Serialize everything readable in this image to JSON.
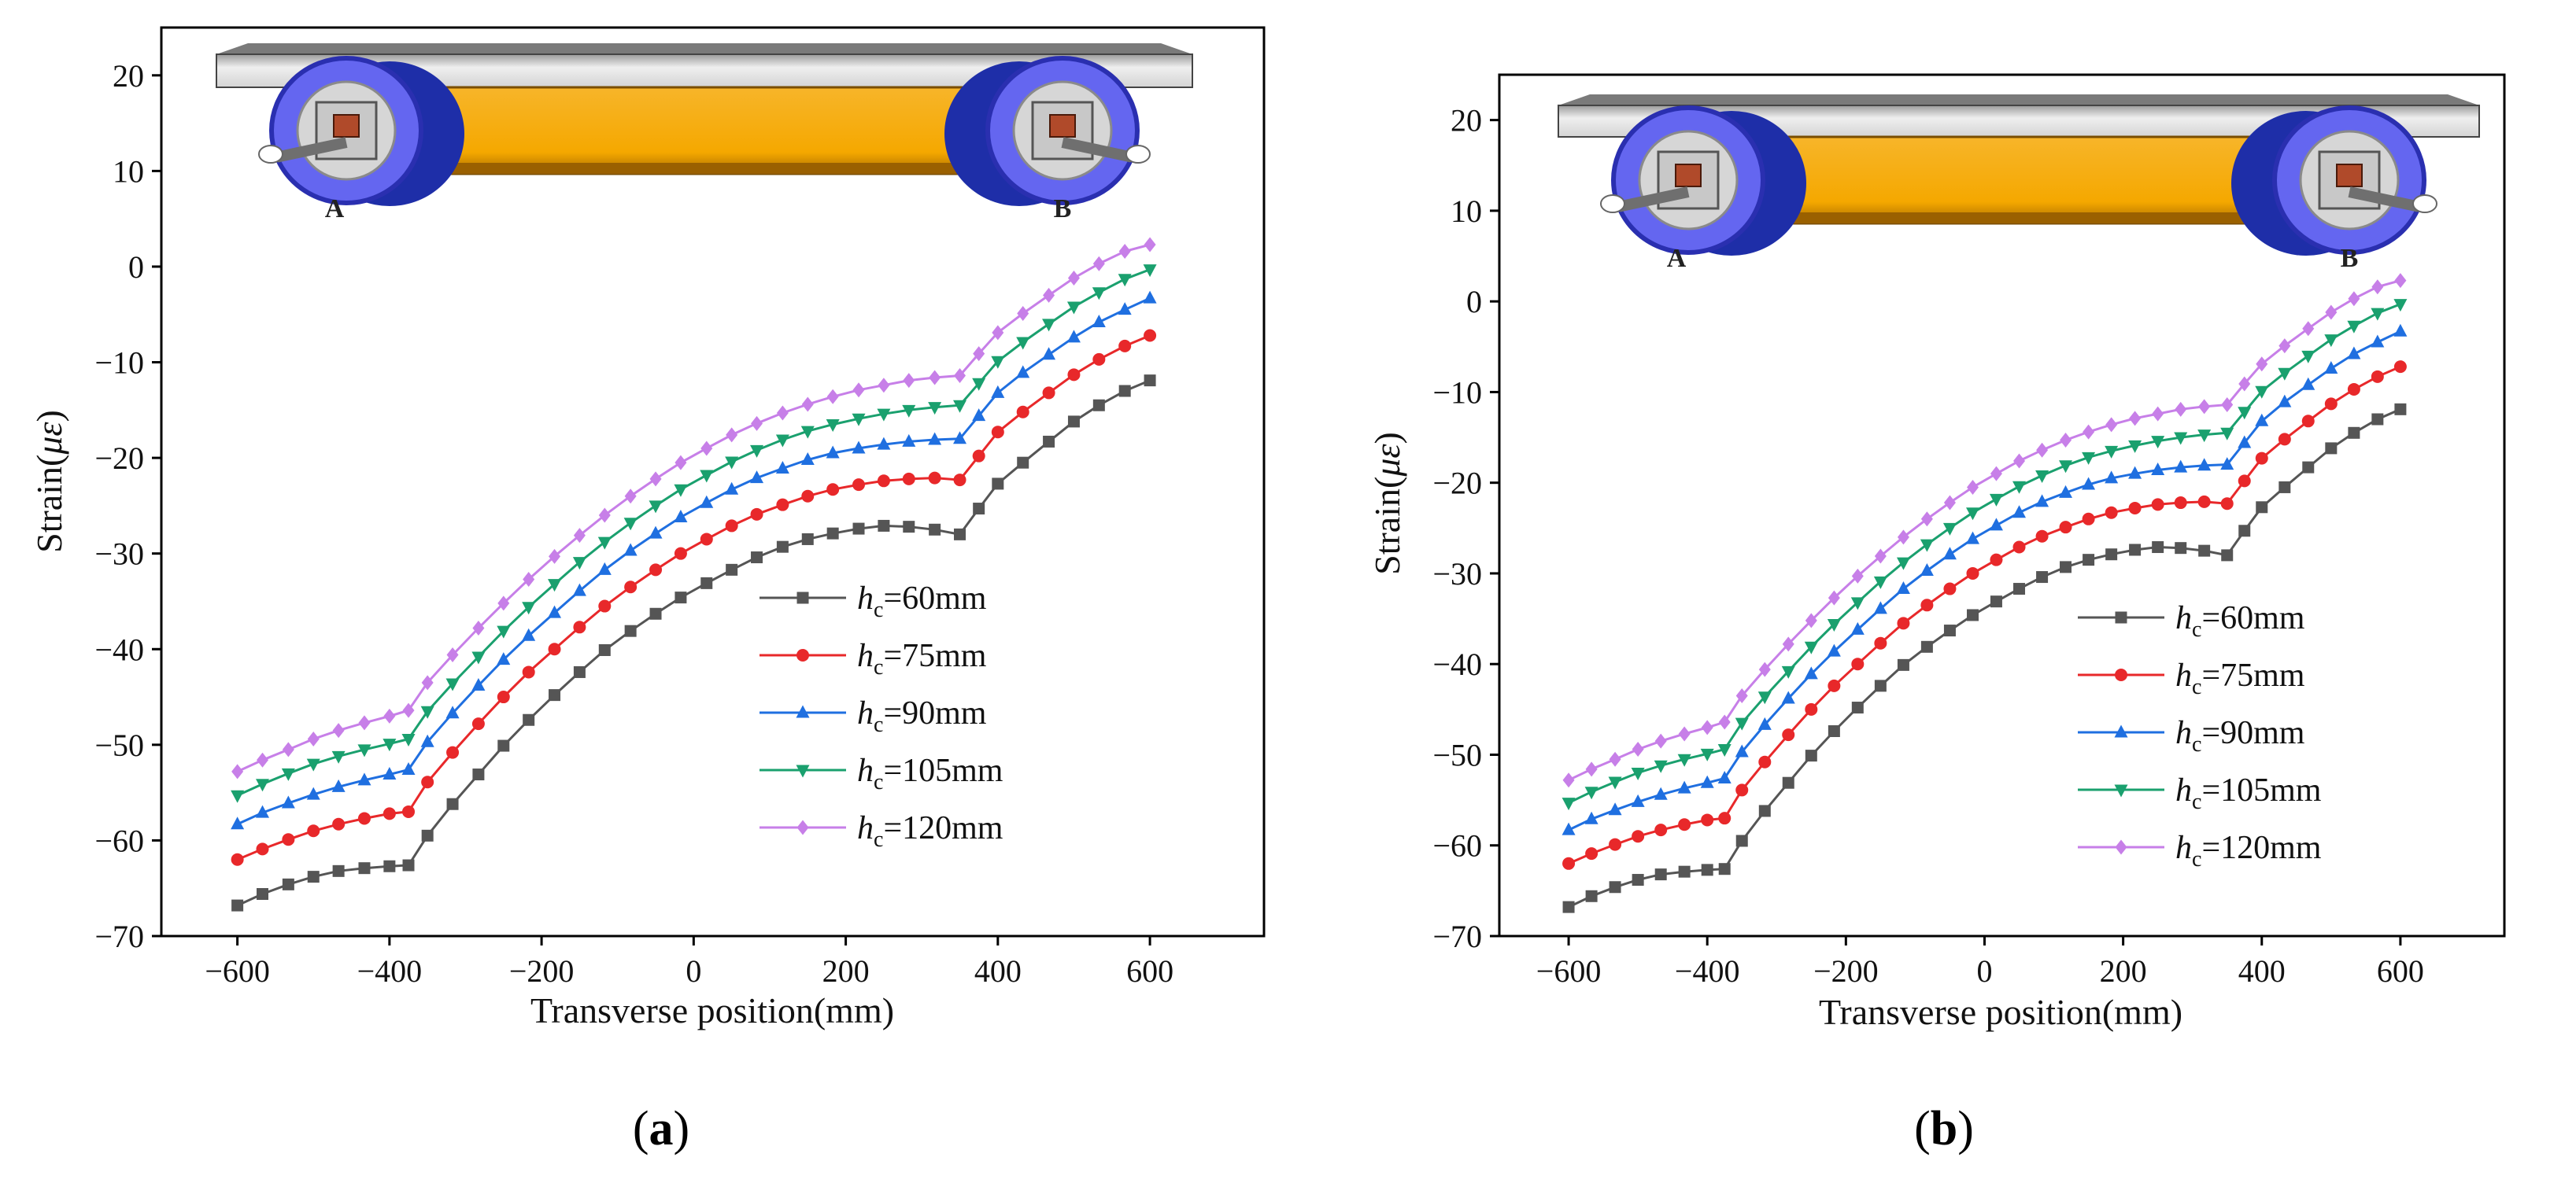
{
  "chart_data": [
    {
      "panel": "a",
      "type": "line",
      "xlabel": "Transverse position(mm)",
      "ylabel_prefix": "Strain(",
      "ylabel_symbol": "με",
      "ylabel_suffix": ")",
      "xlim": [
        -700,
        750
      ],
      "ylim": [
        -70,
        25
      ],
      "xticks": [
        -600,
        -400,
        -200,
        0,
        200,
        400,
        600
      ],
      "yticks": [
        -70,
        -60,
        -50,
        -40,
        -30,
        -20,
        -10,
        0,
        10,
        20
      ],
      "x": [
        -600,
        -567,
        -533,
        -500,
        -467,
        -433,
        -400,
        -375,
        -350,
        -317,
        -283,
        -250,
        -217,
        -183,
        -150,
        -117,
        -83,
        -50,
        -17,
        17,
        50,
        83,
        117,
        150,
        183,
        217,
        250,
        283,
        317,
        350,
        375,
        400,
        433,
        467,
        500,
        533,
        567,
        600
      ],
      "series": [
        {
          "name": "hc=60mm",
          "color": "#555555",
          "marker": "square",
          "values": [
            -66.8,
            -65.6,
            -64.6,
            -63.8,
            -63.2,
            -62.9,
            -62.7,
            -62.6,
            -59.5,
            -56.2,
            -53.1,
            -50.1,
            -47.4,
            -44.8,
            -42.4,
            -40.1,
            -38.1,
            -36.3,
            -34.6,
            -33.1,
            -31.7,
            -30.4,
            -29.3,
            -28.5,
            -27.9,
            -27.4,
            -27.1,
            -27.2,
            -27.5,
            -28.0,
            -25.3,
            -22.7,
            -20.5,
            -18.3,
            -16.2,
            -14.5,
            -13.0,
            -11.9
          ]
        },
        {
          "name": "hc=75mm",
          "color": "#e8282a",
          "marker": "circle",
          "values": [
            -62.0,
            -60.9,
            -59.9,
            -59.0,
            -58.3,
            -57.7,
            -57.2,
            -57.0,
            -53.9,
            -50.8,
            -47.8,
            -45.0,
            -42.4,
            -40.0,
            -37.7,
            -35.5,
            -33.5,
            -31.7,
            -30.0,
            -28.5,
            -27.1,
            -25.9,
            -24.9,
            -24.0,
            -23.3,
            -22.8,
            -22.4,
            -22.2,
            -22.1,
            -22.3,
            -19.8,
            -17.3,
            -15.2,
            -13.2,
            -11.3,
            -9.7,
            -8.3,
            -7.2
          ]
        },
        {
          "name": "hc=90mm",
          "color": "#1f6fe0",
          "marker": "triangle-up",
          "values": [
            -58.3,
            -57.1,
            -56.1,
            -55.2,
            -54.4,
            -53.7,
            -53.1,
            -52.6,
            -49.7,
            -46.7,
            -43.8,
            -41.1,
            -38.6,
            -36.2,
            -33.9,
            -31.7,
            -29.7,
            -27.9,
            -26.2,
            -24.7,
            -23.3,
            -22.1,
            -21.1,
            -20.2,
            -19.5,
            -19.0,
            -18.6,
            -18.3,
            -18.1,
            -18.0,
            -15.6,
            -13.2,
            -11.1,
            -9.2,
            -7.4,
            -5.8,
            -4.5,
            -3.3
          ]
        },
        {
          "name": "hc=105mm",
          "color": "#1aa06e",
          "marker": "triangle-down",
          "values": [
            -55.3,
            -54.1,
            -53.0,
            -52.0,
            -51.2,
            -50.5,
            -49.9,
            -49.4,
            -46.5,
            -43.6,
            -40.8,
            -38.1,
            -35.6,
            -33.2,
            -30.9,
            -28.8,
            -26.8,
            -25.0,
            -23.3,
            -21.8,
            -20.4,
            -19.2,
            -18.1,
            -17.2,
            -16.5,
            -15.9,
            -15.4,
            -15.0,
            -14.7,
            -14.5,
            -12.2,
            -9.9,
            -7.9,
            -6.0,
            -4.2,
            -2.7,
            -1.3,
            -0.3
          ]
        },
        {
          "name": "hc=120mm",
          "color": "#c77fe8",
          "marker": "diamond",
          "values": [
            -52.8,
            -51.6,
            -50.5,
            -49.4,
            -48.5,
            -47.7,
            -47.0,
            -46.4,
            -43.5,
            -40.6,
            -37.8,
            -35.2,
            -32.7,
            -30.3,
            -28.1,
            -26.0,
            -24.0,
            -22.2,
            -20.5,
            -19.0,
            -17.6,
            -16.4,
            -15.3,
            -14.4,
            -13.6,
            -12.9,
            -12.4,
            -11.9,
            -11.6,
            -11.4,
            -9.1,
            -6.9,
            -4.9,
            -3.0,
            -1.2,
            0.3,
            1.6,
            2.3
          ]
        }
      ],
      "legend": [
        {
          "sym": "h",
          "sub": "c",
          "text": "=60mm"
        },
        {
          "sym": "h",
          "sub": "c",
          "text": "=75mm"
        },
        {
          "sym": "h",
          "sub": "c",
          "text": "=90mm"
        },
        {
          "sym": "h",
          "sub": "c",
          "text": "=105mm"
        },
        {
          "sym": "h",
          "sub": "c",
          "text": "=120mm"
        }
      ],
      "inset_labels": {
        "left": "A",
        "right": "B"
      },
      "caption_open": "(",
      "caption_letter": "a",
      "caption_close": ")"
    },
    {
      "panel": "b",
      "type": "line",
      "xlabel": "Transverse position(mm)",
      "ylabel_prefix": "Strain(",
      "ylabel_symbol": "με",
      "ylabel_suffix": ")",
      "xlim": [
        -700,
        750
      ],
      "ylim": [
        -70,
        25
      ],
      "xticks": [
        -600,
        -400,
        -200,
        0,
        200,
        400,
        600
      ],
      "yticks": [
        -70,
        -60,
        -50,
        -40,
        -30,
        -20,
        -10,
        0,
        10,
        20
      ],
      "x": [
        -600,
        -567,
        -533,
        -500,
        -467,
        -433,
        -400,
        -375,
        -350,
        -317,
        -283,
        -250,
        -217,
        -183,
        -150,
        -117,
        -83,
        -50,
        -17,
        17,
        50,
        83,
        117,
        150,
        183,
        217,
        250,
        283,
        317,
        350,
        375,
        400,
        433,
        467,
        500,
        533,
        567,
        600
      ],
      "series": [
        {
          "name": "hc=60mm",
          "color": "#555555",
          "marker": "square",
          "values": [
            -66.8,
            -65.6,
            -64.6,
            -63.8,
            -63.2,
            -62.9,
            -62.7,
            -62.6,
            -59.5,
            -56.2,
            -53.1,
            -50.1,
            -47.4,
            -44.8,
            -42.4,
            -40.1,
            -38.1,
            -36.3,
            -34.6,
            -33.1,
            -31.7,
            -30.4,
            -29.3,
            -28.5,
            -27.9,
            -27.4,
            -27.1,
            -27.2,
            -27.5,
            -28.0,
            -25.3,
            -22.7,
            -20.5,
            -18.3,
            -16.2,
            -14.5,
            -13.0,
            -11.9
          ]
        },
        {
          "name": "hc=75mm",
          "color": "#e8282a",
          "marker": "circle",
          "values": [
            -62.0,
            -60.9,
            -59.9,
            -59.0,
            -58.3,
            -57.7,
            -57.2,
            -57.0,
            -53.9,
            -50.8,
            -47.8,
            -45.0,
            -42.4,
            -40.0,
            -37.7,
            -35.5,
            -33.5,
            -31.7,
            -30.0,
            -28.5,
            -27.1,
            -25.9,
            -24.9,
            -24.0,
            -23.3,
            -22.8,
            -22.4,
            -22.2,
            -22.1,
            -22.3,
            -19.8,
            -17.3,
            -15.2,
            -13.2,
            -11.3,
            -9.7,
            -8.3,
            -7.2
          ]
        },
        {
          "name": "hc=90mm",
          "color": "#1f6fe0",
          "marker": "triangle-up",
          "values": [
            -58.3,
            -57.1,
            -56.1,
            -55.2,
            -54.4,
            -53.7,
            -53.1,
            -52.6,
            -49.7,
            -46.7,
            -43.8,
            -41.1,
            -38.6,
            -36.2,
            -33.9,
            -31.7,
            -29.7,
            -27.9,
            -26.2,
            -24.7,
            -23.3,
            -22.1,
            -21.1,
            -20.2,
            -19.5,
            -19.0,
            -18.6,
            -18.3,
            -18.1,
            -18.0,
            -15.6,
            -13.2,
            -11.1,
            -9.2,
            -7.4,
            -5.8,
            -4.5,
            -3.3
          ]
        },
        {
          "name": "hc=105mm",
          "color": "#1aa06e",
          "marker": "triangle-down",
          "values": [
            -55.3,
            -54.1,
            -53.0,
            -52.0,
            -51.2,
            -50.5,
            -49.9,
            -49.4,
            -46.5,
            -43.6,
            -40.8,
            -38.1,
            -35.6,
            -33.2,
            -30.9,
            -28.8,
            -26.8,
            -25.0,
            -23.3,
            -21.8,
            -20.4,
            -19.2,
            -18.1,
            -17.2,
            -16.5,
            -15.9,
            -15.4,
            -15.0,
            -14.7,
            -14.5,
            -12.2,
            -9.9,
            -7.9,
            -6.0,
            -4.2,
            -2.7,
            -1.3,
            -0.3
          ]
        },
        {
          "name": "hc=120mm",
          "color": "#c77fe8",
          "marker": "diamond",
          "values": [
            -52.8,
            -51.6,
            -50.5,
            -49.4,
            -48.5,
            -47.7,
            -47.0,
            -46.4,
            -43.5,
            -40.6,
            -37.8,
            -35.2,
            -32.7,
            -30.3,
            -28.1,
            -26.0,
            -24.0,
            -22.2,
            -20.5,
            -19.0,
            -17.6,
            -16.4,
            -15.3,
            -14.4,
            -13.6,
            -12.9,
            -12.4,
            -11.9,
            -11.6,
            -11.4,
            -9.1,
            -6.9,
            -4.9,
            -3.0,
            -1.2,
            0.3,
            1.6,
            2.3
          ]
        }
      ],
      "legend": [
        {
          "sym": "h",
          "sub": "c",
          "text": "=60mm"
        },
        {
          "sym": "h",
          "sub": "c",
          "text": "=75mm"
        },
        {
          "sym": "h",
          "sub": "c",
          "text": "=90mm"
        },
        {
          "sym": "h",
          "sub": "c",
          "text": "=105mm"
        },
        {
          "sym": "h",
          "sub": "c",
          "text": "=120mm"
        }
      ],
      "inset_labels": {
        "left": "A",
        "right": "B"
      },
      "caption_open": "(",
      "caption_letter": "b",
      "caption_close": ")"
    }
  ]
}
